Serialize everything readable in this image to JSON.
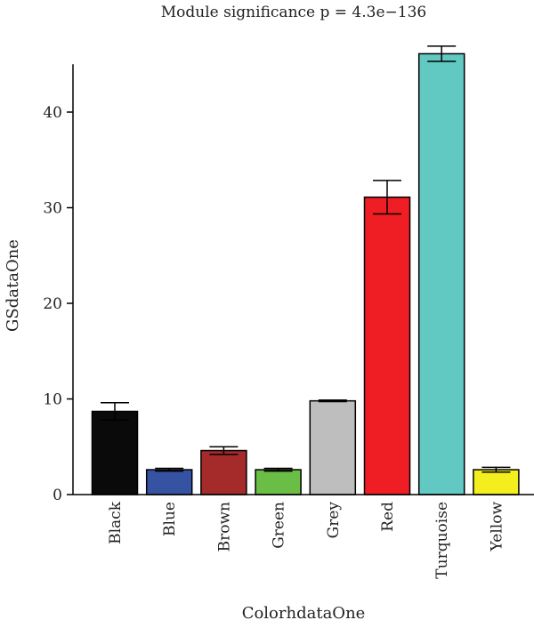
{
  "chart_data": {
    "type": "bar",
    "title": "Module significance p = 4.3e−136",
    "xlabel": "ColorhdataOne",
    "ylabel": "GSdataOne",
    "ylim": [
      0,
      45
    ],
    "yticks": [
      0,
      10,
      20,
      30,
      40
    ],
    "grid": false,
    "categories": [
      "Black",
      "Blue",
      "Brown",
      "Green",
      "Grey",
      "Red",
      "Turquoise",
      "Yellow"
    ],
    "values": [
      8.7,
      2.6,
      4.6,
      2.6,
      9.8,
      31.1,
      46.1,
      2.6
    ],
    "errors": [
      0.9,
      0.15,
      0.4,
      0.15,
      0.08,
      1.75,
      0.8,
      0.25
    ],
    "colors": [
      "#0a0a0a",
      "#3652a3",
      "#a52a2a",
      "#6abe45",
      "#bebebe",
      "#ef1d24",
      "#62c8c2",
      "#f4ee1f"
    ]
  }
}
